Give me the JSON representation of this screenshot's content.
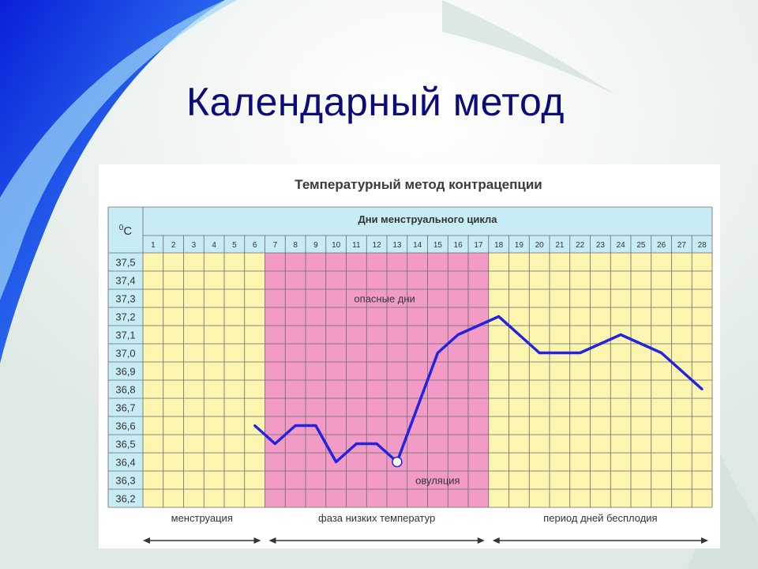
{
  "slide": {
    "title": "Календарный метод"
  },
  "colors": {
    "title": "#0b0b7a",
    "header": "#c8ecf6",
    "safe": "#fbf5b0",
    "danger": "#f29bc6",
    "line": "#2424e0",
    "grid": "#6a6a6a"
  },
  "chart_data": {
    "type": "line",
    "title": "Температурный метод контрацепции",
    "xlabel": "Дни менструального цикла",
    "ylabel": "°C",
    "ylabel_parts": [
      "0",
      "C"
    ],
    "days": [
      1,
      2,
      3,
      4,
      5,
      6,
      7,
      8,
      9,
      10,
      11,
      12,
      13,
      14,
      15,
      16,
      17,
      18,
      19,
      20,
      21,
      22,
      23,
      24,
      25,
      26,
      27,
      28
    ],
    "y_ticks": [
      "37,5",
      "37,4",
      "37,3",
      "37,2",
      "37,1",
      "37,0",
      "36,9",
      "36,8",
      "36,7",
      "36,6",
      "36,5",
      "36,4",
      "36,3",
      "36,2"
    ],
    "ylim": [
      36.2,
      37.5
    ],
    "series": [
      {
        "x": [
          6,
          7,
          8,
          9,
          10,
          11,
          12,
          13,
          14,
          15,
          16,
          17,
          18,
          19,
          20,
          21,
          22,
          23,
          24,
          25,
          26,
          27,
          28
        ],
        "values": [
          36.6,
          36.5,
          36.6,
          36.6,
          36.4,
          36.5,
          36.5,
          36.4,
          36.7,
          37.0,
          37.1,
          37.15,
          37.2,
          37.1,
          37.0,
          37.0,
          37.0,
          37.05,
          37.1,
          37.05,
          37.0,
          36.9,
          36.8
        ]
      }
    ],
    "ovulation_day": 13,
    "ovulation_value": 36.4,
    "danger_days": [
      7,
      17
    ],
    "annotations": {
      "danger": "опасные дни",
      "ovulation": "овуляция"
    },
    "phases": [
      {
        "label": "менструация",
        "from": 1,
        "to": 6
      },
      {
        "label": "фаза низких температур",
        "from": 7,
        "to": 17
      },
      {
        "label": "период дней бесплодия",
        "from": 18,
        "to": 28
      }
    ]
  }
}
